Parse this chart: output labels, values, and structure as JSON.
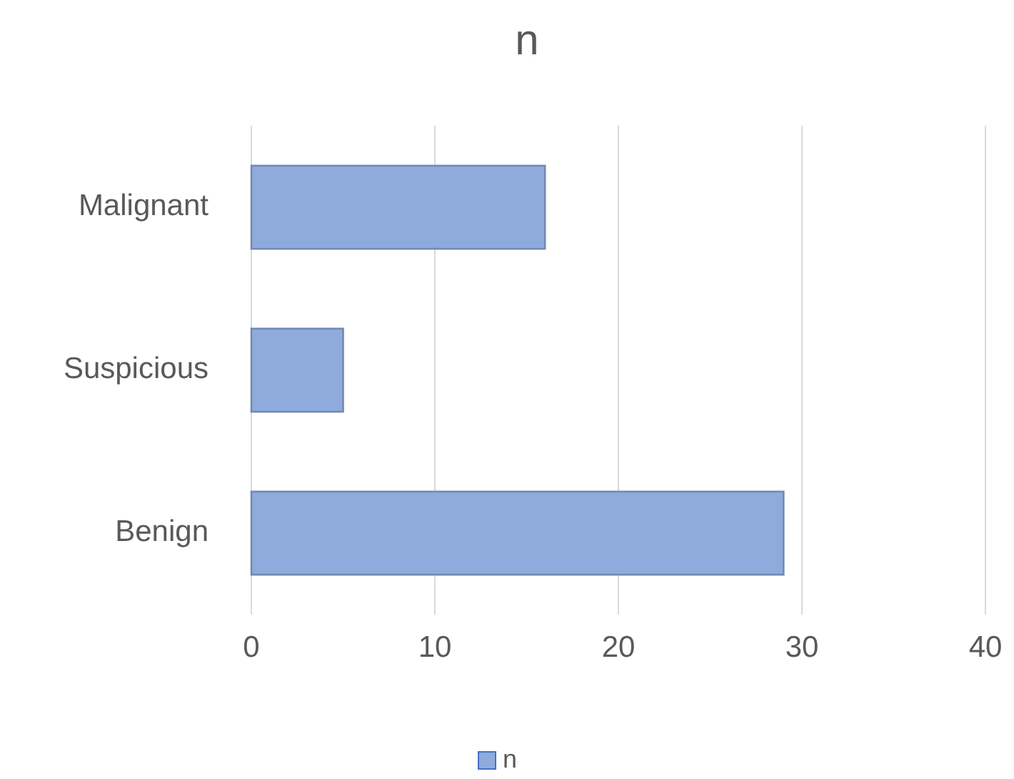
{
  "chart_data": {
    "type": "bar",
    "orientation": "horizontal",
    "title": "n",
    "categories": [
      "Malignant",
      "Suspicious",
      "Benign"
    ],
    "series": [
      {
        "name": "n",
        "color": "#8faadc",
        "values": [
          16,
          5,
          29
        ]
      }
    ],
    "xlim": [
      0,
      40
    ],
    "xticks": [
      0,
      10,
      20,
      30,
      40
    ],
    "grid": "x",
    "legend": "bottom"
  }
}
